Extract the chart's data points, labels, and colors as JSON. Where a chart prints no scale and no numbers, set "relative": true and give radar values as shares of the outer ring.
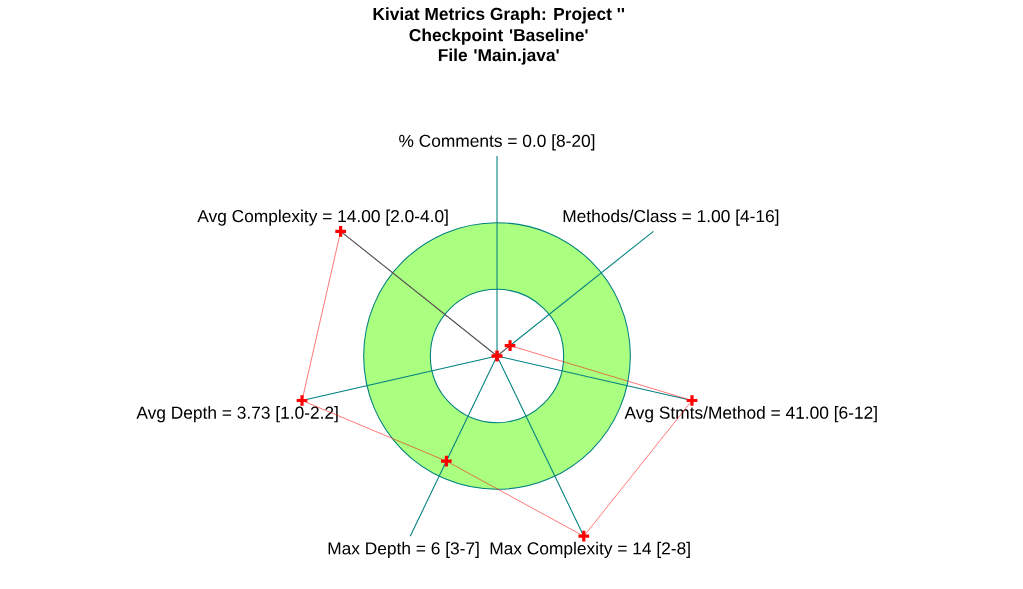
{
  "chart_data": {
    "type": "radar",
    "title": "Kiviat Metrics Graph: Project ''",
    "subtitle": "Checkpoint 'Baseline' File 'Main.java'",
    "categories": [
      "% Comments = 0.0 [8-20]",
      "Methods/Class = 1.00 [4-16]",
      "Avg Stmts/Method = 41.00 [6-12]",
      "Max Complexity = 14 [2-8]",
      "Max Depth = 6 [3-7]",
      "Avg Depth = 3.73 [1.0-2.2]",
      "Avg Complexity = 14.00 [2.0-4.0]"
    ],
    "relative": true,
    "series": [
      {
        "color": "#ff0000",
        "values": [
          0,
          0.125,
          1.5,
          1.5,
          0.875,
          1.5,
          1.5
        ]
      }
    ],
    "marker": "cross",
    "legend": false
  }
}
